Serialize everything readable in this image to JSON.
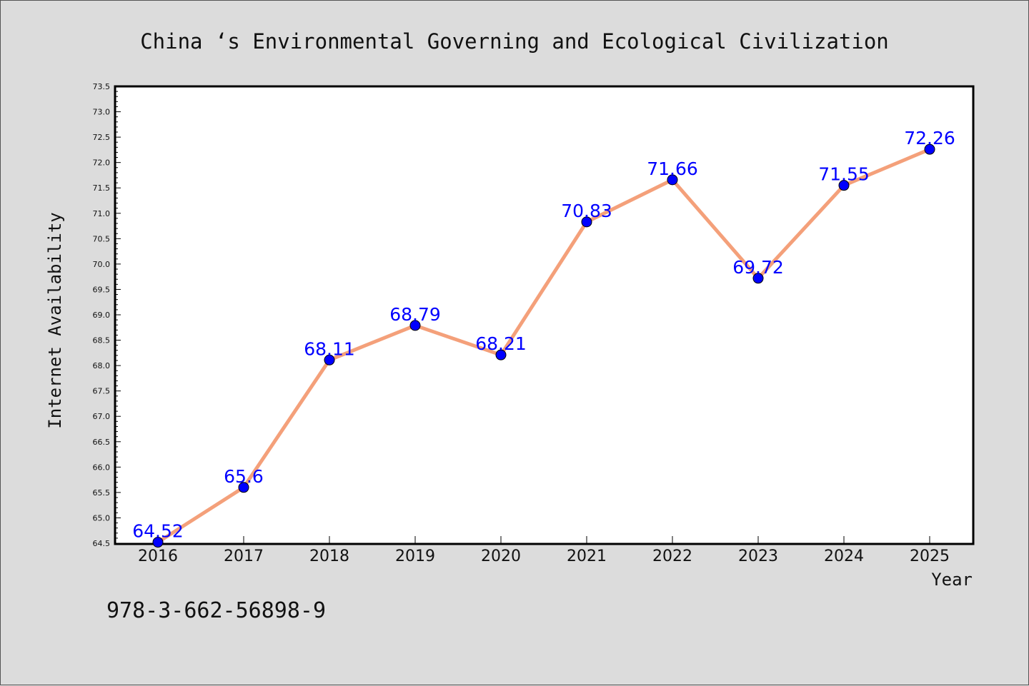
{
  "chart_data": {
    "type": "line",
    "title": "China ‘s Environmental Governing and Ecological Civilization",
    "xlabel": "Year",
    "ylabel": "Internet Availability",
    "x": [
      "2016",
      "2017",
      "2018",
      "2019",
      "2020",
      "2021",
      "2022",
      "2023",
      "2024",
      "2025"
    ],
    "series": [
      {
        "values": [
          64.52,
          65.6,
          68.11,
          68.79,
          68.21,
          70.83,
          71.66,
          69.72,
          71.55,
          72.26
        ],
        "labels": [
          "64.52",
          "65.6",
          "68.11",
          "68.79",
          "68.21",
          "70.83",
          "71.66",
          "69.72",
          "71.55",
          "72.26"
        ],
        "line_color": "#f4a07a",
        "marker_color": "#0000ff"
      }
    ],
    "ylim": [
      64.5,
      73.5
    ],
    "yticks": [
      "64.5",
      "65.0",
      "65.5",
      "66.0",
      "66.5",
      "67.0",
      "67.5",
      "68.0",
      "68.5",
      "69.0",
      "69.5",
      "70.0",
      "70.5",
      "71.0",
      "71.5",
      "72.0",
      "72.5",
      "73.0",
      "73.5"
    ],
    "grid": false,
    "label_color": "#0000ff"
  },
  "footnote": "978-3-662-56898-9"
}
